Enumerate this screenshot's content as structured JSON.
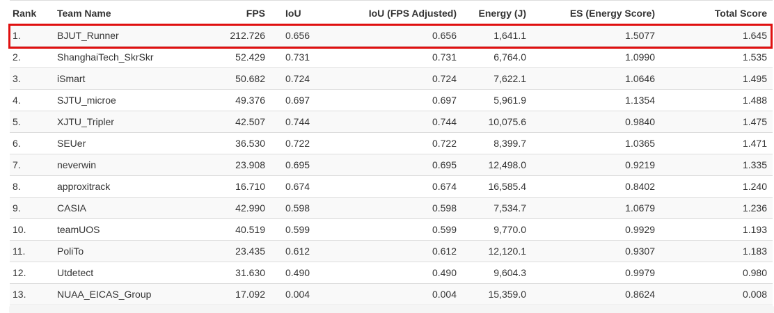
{
  "table": {
    "columns": [
      {
        "key": "rank",
        "label": "Rank",
        "align": "left"
      },
      {
        "key": "team",
        "label": "Team Name",
        "align": "left"
      },
      {
        "key": "fps",
        "label": "FPS",
        "align": "right"
      },
      {
        "key": "iou",
        "label": "IoU",
        "align": "left"
      },
      {
        "key": "iou_adj",
        "label": "IoU (FPS Adjusted)",
        "align": "right"
      },
      {
        "key": "energy",
        "label": "Energy (J)",
        "align": "right"
      },
      {
        "key": "es",
        "label": "ES (Energy Score)",
        "align": "right"
      },
      {
        "key": "total",
        "label": "Total Score",
        "align": "right"
      }
    ],
    "rows": [
      {
        "rank": "1.",
        "team": "BJUT_Runner",
        "fps": "212.726",
        "iou": "0.656",
        "iou_adj": "0.656",
        "energy": "1,641.1",
        "es": "1.5077",
        "total": "1.645",
        "highlighted": true
      },
      {
        "rank": "2.",
        "team": "ShanghaiTech_SkrSkr",
        "fps": "52.429",
        "iou": "0.731",
        "iou_adj": "0.731",
        "energy": "6,764.0",
        "es": "1.0990",
        "total": "1.535",
        "highlighted": false
      },
      {
        "rank": "3.",
        "team": "iSmart",
        "fps": "50.682",
        "iou": "0.724",
        "iou_adj": "0.724",
        "energy": "7,622.1",
        "es": "1.0646",
        "total": "1.495",
        "highlighted": false
      },
      {
        "rank": "4.",
        "team": "SJTU_microe",
        "fps": "49.376",
        "iou": "0.697",
        "iou_adj": "0.697",
        "energy": "5,961.9",
        "es": "1.1354",
        "total": "1.488",
        "highlighted": false
      },
      {
        "rank": "5.",
        "team": "XJTU_Tripler",
        "fps": "42.507",
        "iou": "0.744",
        "iou_adj": "0.744",
        "energy": "10,075.6",
        "es": "0.9840",
        "total": "1.475",
        "highlighted": false
      },
      {
        "rank": "6.",
        "team": "SEUer",
        "fps": "36.530",
        "iou": "0.722",
        "iou_adj": "0.722",
        "energy": "8,399.7",
        "es": "1.0365",
        "total": "1.471",
        "highlighted": false
      },
      {
        "rank": "7.",
        "team": "neverwin",
        "fps": "23.908",
        "iou": "0.695",
        "iou_adj": "0.695",
        "energy": "12,498.0",
        "es": "0.9219",
        "total": "1.335",
        "highlighted": false
      },
      {
        "rank": "8.",
        "team": "approxitrack",
        "fps": "16.710",
        "iou": "0.674",
        "iou_adj": "0.674",
        "energy": "16,585.4",
        "es": "0.8402",
        "total": "1.240",
        "highlighted": false
      },
      {
        "rank": "9.",
        "team": "CASIA",
        "fps": "42.990",
        "iou": "0.598",
        "iou_adj": "0.598",
        "energy": "7,534.7",
        "es": "1.0679",
        "total": "1.236",
        "highlighted": false
      },
      {
        "rank": "10.",
        "team": "teamUOS",
        "fps": "40.519",
        "iou": "0.599",
        "iou_adj": "0.599",
        "energy": "9,770.0",
        "es": "0.9929",
        "total": "1.193",
        "highlighted": false
      },
      {
        "rank": "11.",
        "team": "PoliTo",
        "fps": "23.435",
        "iou": "0.612",
        "iou_adj": "0.612",
        "energy": "12,120.1",
        "es": "0.9307",
        "total": "1.183",
        "highlighted": false
      },
      {
        "rank": "12.",
        "team": "Utdetect",
        "fps": "31.630",
        "iou": "0.490",
        "iou_adj": "0.490",
        "energy": "9,604.3",
        "es": "0.9979",
        "total": "0.980",
        "highlighted": false
      },
      {
        "rank": "13.",
        "team": "NUAA_EICAS_Group",
        "fps": "17.092",
        "iou": "0.004",
        "iou_adj": "0.004",
        "energy": "15,359.0",
        "es": "0.8624",
        "total": "0.008",
        "highlighted": false
      }
    ]
  },
  "colors": {
    "highlight_border": "#e01010",
    "stripe": "#f9f9f9",
    "row_border": "#dddddd",
    "text": "#333333",
    "scrollbar": "#f5f5f5"
  }
}
